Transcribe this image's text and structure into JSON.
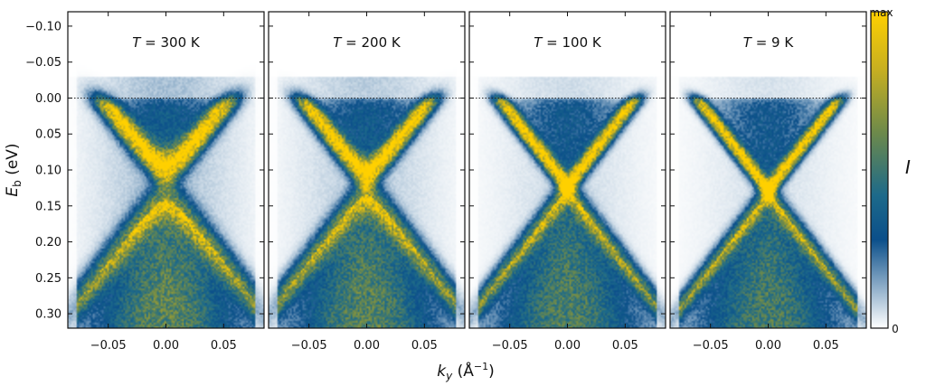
{
  "chart_data": {
    "type": "heatmap",
    "ylabel_main": "E",
    "ylabel_sub": "b",
    "ylabel_unit": "(eV)",
    "xlabel_main": "k",
    "xlabel_sub": "y",
    "xlabel_unit": "(Å",
    "xlabel_exp": "−1",
    "xlabel_close": ")",
    "ylim": [
      0.32,
      -0.12
    ],
    "xlim": [
      -0.085,
      0.085
    ],
    "yticks": [
      -0.1,
      -0.05,
      0.0,
      0.05,
      0.1,
      0.15,
      0.2,
      0.25,
      0.3
    ],
    "ytick_labels": [
      "−0.10",
      "−0.05",
      "0.00",
      "0.05",
      "0.10",
      "0.15",
      "0.20",
      "0.25",
      "0.30"
    ],
    "xticks": [
      -0.05,
      0.0,
      0.05
    ],
    "xtick_labels": [
      "−0.05",
      "0.00",
      "0.05"
    ],
    "fermi_level": 0.0,
    "panels": [
      {
        "label_var": "T",
        "label_value": "= 300 K",
        "temperature_K": 300,
        "dirac_point_eV": 0.12,
        "band_top_eV": 0.15,
        "gap_eV": 0.045,
        "broadening": 1.0
      },
      {
        "label_var": "T",
        "label_value": "= 200 K",
        "temperature_K": 200,
        "dirac_point_eV": 0.12,
        "band_top_eV": 0.14,
        "gap_eV": 0.03,
        "broadening": 0.8
      },
      {
        "label_var": "T",
        "label_value": "= 100 K",
        "temperature_K": 100,
        "dirac_point_eV": 0.125,
        "band_top_eV": 0.13,
        "gap_eV": 0.0,
        "broadening": 0.55
      },
      {
        "label_var": "T",
        "label_value": "= 9 K",
        "temperature_K": 9,
        "dirac_point_eV": 0.13,
        "band_top_eV": 0.13,
        "gap_eV": 0.0,
        "broadening": 0.45
      }
    ],
    "colorbar": {
      "label": "I",
      "max_label": "max",
      "min_label": "0",
      "colors": [
        "#ffffff",
        "#0b4f8a",
        "#1d6a8a",
        "#6e8a4a",
        "#c8b020",
        "#ffd000"
      ]
    }
  }
}
